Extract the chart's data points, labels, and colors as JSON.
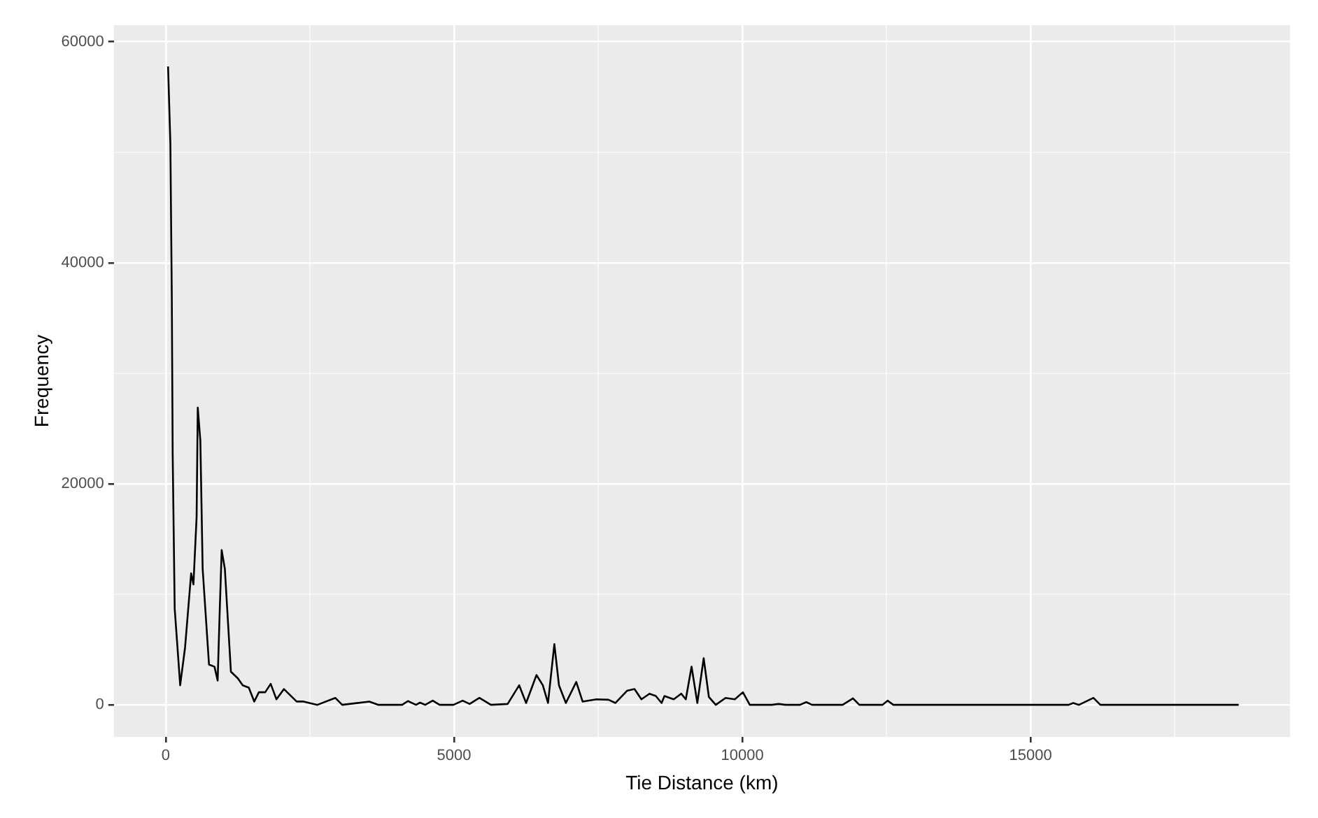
{
  "chart_data": {
    "type": "line",
    "xlabel": "Tie Distance (km)",
    "ylabel": "Frequency",
    "x": [
      40,
      80,
      105,
      120,
      155,
      250,
      335,
      440,
      480,
      535,
      555,
      600,
      640,
      750,
      845,
      900,
      935,
      970,
      1025,
      1130,
      1250,
      1335,
      1440,
      1535,
      1615,
      1725,
      1820,
      1920,
      2050,
      2270,
      2390,
      2630,
      2940,
      3060,
      3530,
      3690,
      4100,
      4200,
      4340,
      4410,
      4500,
      4630,
      4750,
      4990,
      5150,
      5270,
      5440,
      5640,
      5930,
      6130,
      6250,
      6430,
      6540,
      6630,
      6740,
      6820,
      6940,
      7120,
      7230,
      7470,
      7680,
      7800,
      8000,
      8130,
      8250,
      8390,
      8500,
      8600,
      8650,
      8810,
      8940,
      9020,
      9120,
      9220,
      9330,
      9420,
      9540,
      9710,
      9870,
      10010,
      10130,
      10510,
      10630,
      10750,
      11000,
      11110,
      11210,
      11740,
      11920,
      12030,
      12430,
      12520,
      12620,
      15660,
      15740,
      15840,
      15960,
      16090,
      16210,
      18610
    ],
    "series": [
      {
        "color": "#000000",
        "values": [
          57760,
          50760,
          36800,
          22650,
          8700,
          1770,
          5200,
          11900,
          10900,
          17000,
          26900,
          23900,
          12300,
          3650,
          3450,
          2200,
          8350,
          14000,
          12300,
          3000,
          2400,
          1770,
          1560,
          300,
          1140,
          1140,
          1900,
          500,
          1430,
          300,
          300,
          0,
          630,
          0,
          300,
          0,
          0,
          340,
          0,
          200,
          0,
          380,
          0,
          0,
          380,
          80,
          630,
          0,
          80,
          1770,
          170,
          2700,
          1770,
          170,
          5490,
          1770,
          170,
          2070,
          300,
          500,
          460,
          170,
          1270,
          1430,
          500,
          1010,
          800,
          170,
          800,
          500,
          1010,
          500,
          3460,
          170,
          4220,
          720,
          0,
          630,
          500,
          1140,
          0,
          0,
          80,
          0,
          0,
          250,
          0,
          0,
          590,
          0,
          0,
          380,
          0,
          0,
          170,
          0,
          300,
          630,
          0,
          0
        ]
      }
    ],
    "xlim": [
      -900,
      19500
    ],
    "ylim": [
      -2900,
      61500
    ],
    "xticks": [
      0,
      {
        "value": 2500,
        "label": null
      },
      5000,
      {
        "value": 7500,
        "label": null
      },
      10000,
      {
        "value": 12500,
        "label": null
      },
      15000,
      {
        "value": 17500,
        "label": null
      }
    ],
    "yticks": [
      0,
      {
        "value": 10000,
        "label": null
      },
      20000,
      {
        "value": 30000,
        "label": null
      },
      40000,
      {
        "value": 50000,
        "label": null
      },
      60000
    ],
    "grid": true,
    "legend": false,
    "marker": "none",
    "line_style": "solid"
  }
}
